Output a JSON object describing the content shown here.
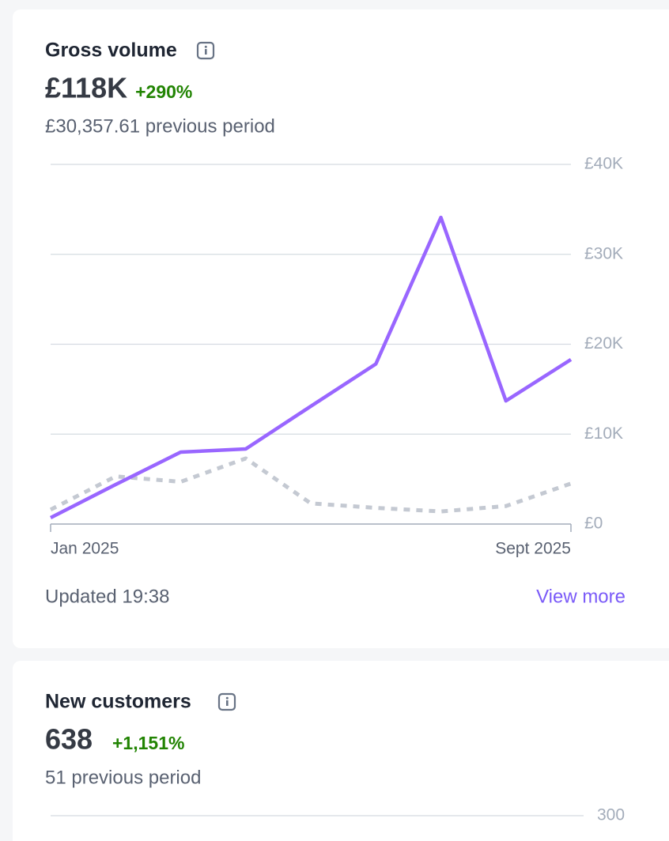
{
  "cards": [
    {
      "title": "Gross volume",
      "value": "£118K",
      "change": "+290%",
      "previous": "£30,357.61 previous period",
      "chart_data": {
        "type": "line",
        "categories": [
          "Jan 2025",
          null,
          null,
          null,
          null,
          null,
          null,
          null,
          "Sept 2025"
        ],
        "series": [
          {
            "color": "#9966ff",
            "dashed": false,
            "values": [
              0.7,
              4.4,
              8.0,
              8.35,
              13.1,
              17.8,
              34.1,
              13.7,
              18.3
            ]
          },
          {
            "color": "#c4c9d2",
            "dashed": true,
            "values": [
              1.6,
              5.3,
              4.7,
              7.3,
              2.3,
              1.8,
              1.4,
              2.0,
              4.5
            ]
          }
        ],
        "ylim": [
          0,
          40
        ],
        "yticks": [
          {
            "value": 0,
            "label": "£0"
          },
          {
            "value": 10,
            "label": "£10K"
          },
          {
            "value": 20,
            "label": "£20K"
          },
          {
            "value": 30,
            "label": "£30K"
          },
          {
            "value": 40,
            "label": "£40K"
          }
        ],
        "grid": true
      },
      "updated": "Updated 19:38",
      "link": "View more"
    },
    {
      "title": "New customers",
      "value": "638",
      "change": "+1,151%",
      "previous": "51 previous period",
      "chart_data": {
        "type": "line",
        "yticks": [
          300
        ],
        "grid": true
      }
    }
  ]
}
